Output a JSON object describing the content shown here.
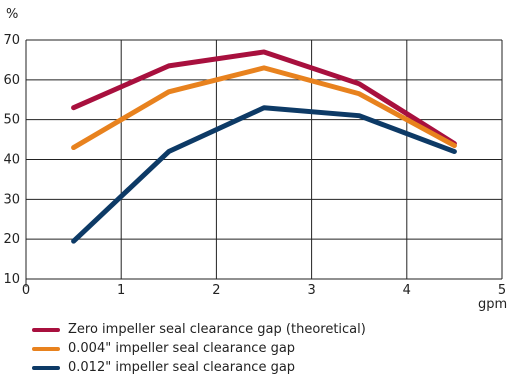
{
  "chart_data": {
    "type": "line",
    "xlabel": "gpm",
    "ylabel": "%",
    "xlim": [
      0,
      5
    ],
    "ylim": [
      10,
      70
    ],
    "xticks": [
      0,
      1,
      2,
      3,
      4,
      5
    ],
    "yticks": [
      10,
      20,
      30,
      40,
      50,
      60,
      70
    ],
    "grid": true,
    "legend_position": "bottom",
    "x": [
      0.5,
      1.5,
      2.5,
      3.5,
      4.5
    ],
    "series": [
      {
        "name": "Zero impeller seal clearance gap (theoretical)",
        "color": "#a8103e",
        "values": [
          53,
          63.5,
          67,
          59,
          44
        ]
      },
      {
        "name": "0.004\" impeller seal clearance gap",
        "color": "#e8821e",
        "values": [
          43,
          57,
          63,
          56.5,
          43.5
        ]
      },
      {
        "name": "0.012\" impeller seal clearance gap",
        "color": "#0d3a66",
        "values": [
          19.5,
          42,
          53,
          51,
          42
        ]
      }
    ]
  }
}
